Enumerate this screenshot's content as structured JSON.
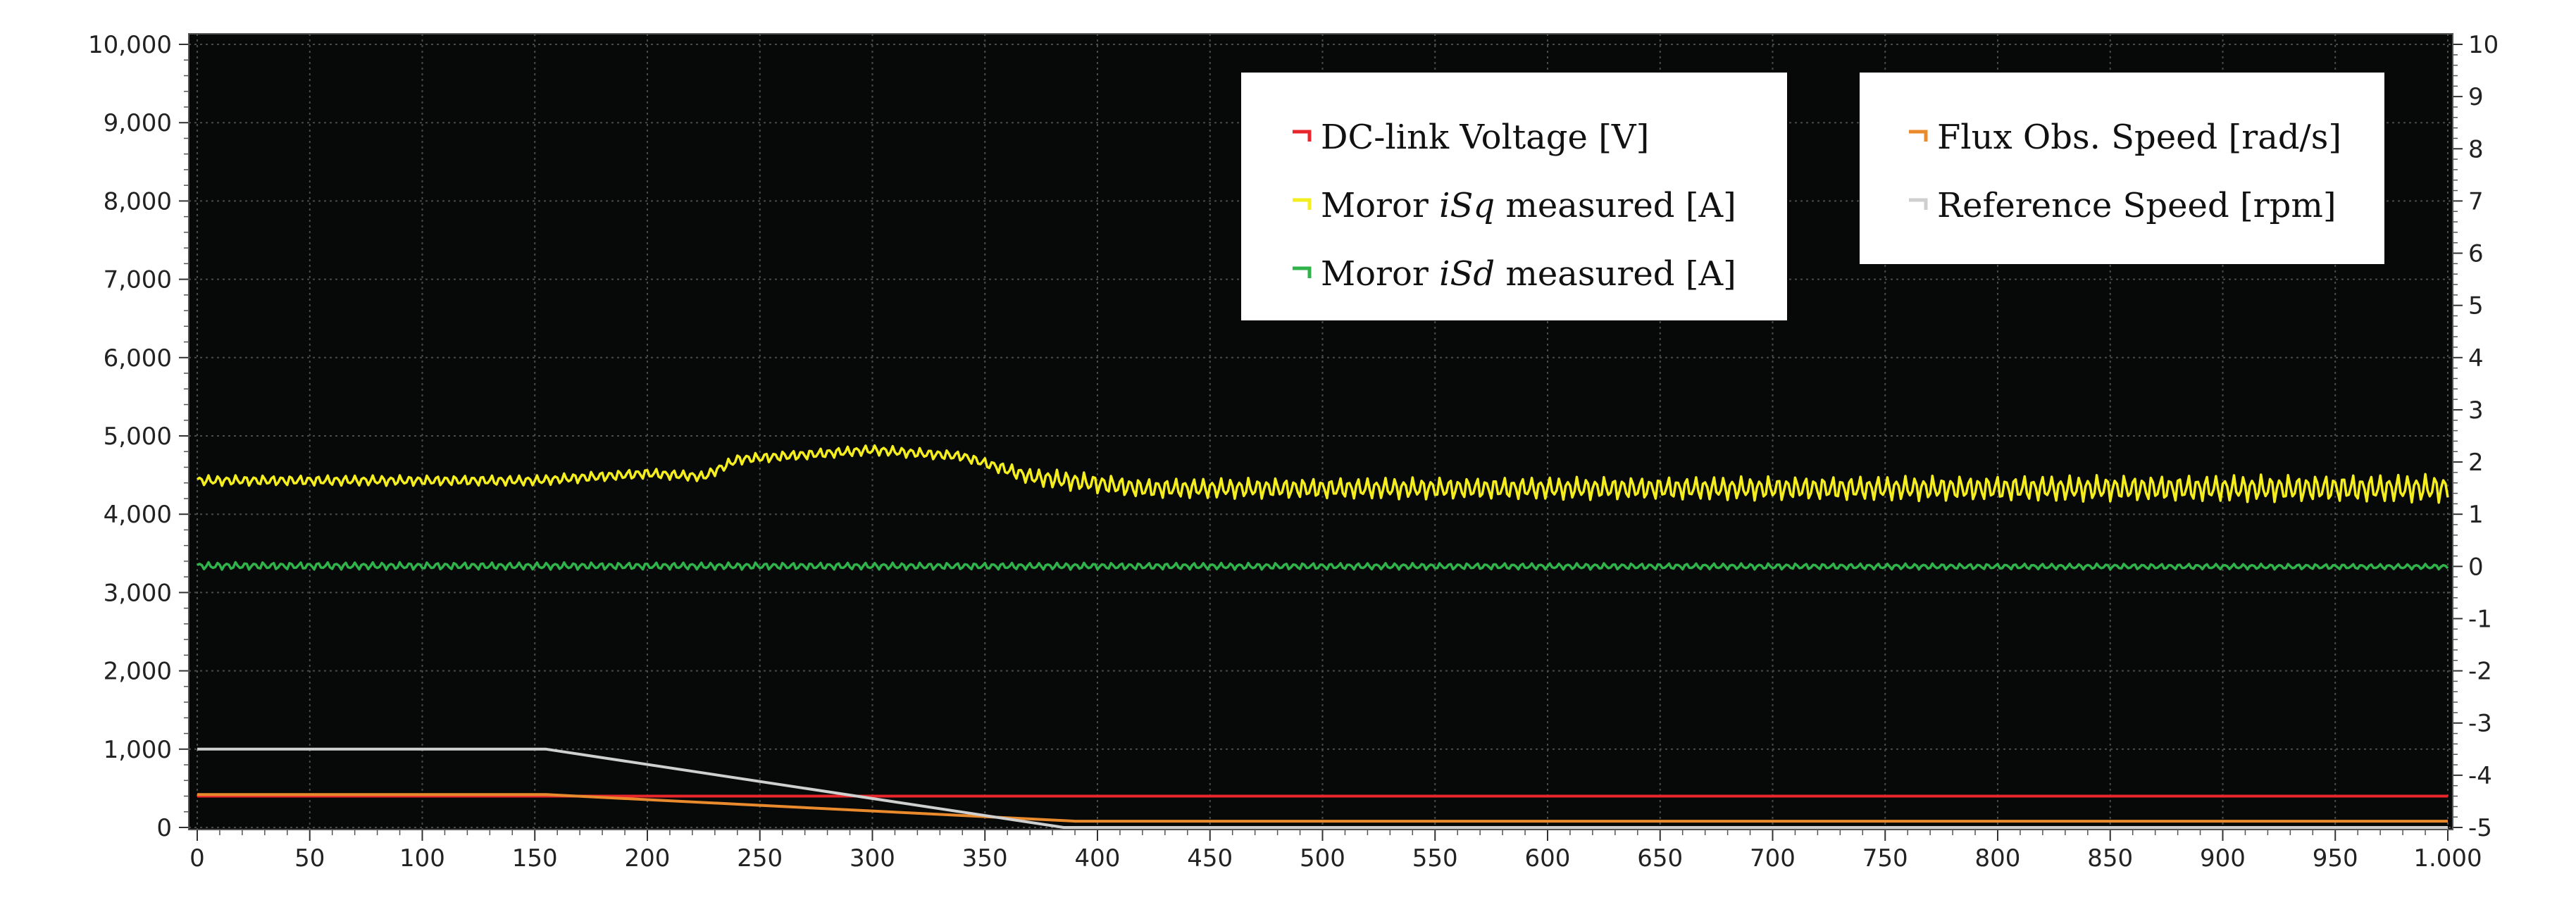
{
  "chart_data": {
    "type": "line",
    "x_axis": {
      "min": 0,
      "max": 1000,
      "ticks": [
        "0",
        "50",
        "100",
        "150",
        "200",
        "250",
        "300",
        "350",
        "400",
        "450",
        "500",
        "550",
        "600",
        "650",
        "700",
        "750",
        "800",
        "850",
        "900",
        "950",
        "1.000"
      ]
    },
    "y_left": {
      "min": 0,
      "max": 10000,
      "ticks": [
        "0",
        "1,000",
        "2,000",
        "3,000",
        "4,000",
        "5,000",
        "6,000",
        "7,000",
        "8,000",
        "9,000",
        "10,000"
      ]
    },
    "y_right": {
      "min": -5,
      "max": 10,
      "ticks": [
        "-5",
        "-4",
        "-3",
        "-2",
        "-1",
        "0",
        "1",
        "2",
        "3",
        "4",
        "5",
        "6",
        "7",
        "8",
        "9",
        "10"
      ]
    },
    "grid": true,
    "legend_left": [
      {
        "label_parts": [
          "DC-link Voltage [V]"
        ],
        "color": "#e8262b"
      },
      {
        "label_parts": [
          "Moror ",
          "iSq",
          " measured [A]"
        ],
        "color": "#f4ee1e"
      },
      {
        "label_parts": [
          "Moror ",
          "iSd",
          " measured [A]"
        ],
        "color": "#2fb34a"
      }
    ],
    "legend_right": [
      {
        "label_parts": [
          "Flux Obs. Speed [rad/s]"
        ],
        "color": "#e98a2c"
      },
      {
        "label_parts": [
          "Reference Speed [rpm]"
        ],
        "color": "#cfcfcf"
      }
    ],
    "series": [
      {
        "name": "DC-link Voltage [V]",
        "color": "#e8262b",
        "points": [
          [
            0,
            400
          ],
          [
            1000,
            400
          ]
        ]
      },
      {
        "name": "Moror iSq measured [A]",
        "color": "#f4ee1e",
        "envelope": [
          [
            0,
            4430
          ],
          [
            150,
            4430
          ],
          [
            200,
            4520
          ],
          [
            225,
            4480
          ],
          [
            240,
            4700
          ],
          [
            300,
            4820
          ],
          [
            340,
            4740
          ],
          [
            370,
            4480
          ],
          [
            420,
            4330
          ],
          [
            1000,
            4330
          ]
        ],
        "amplitude": [
          [
            0,
            70
          ],
          [
            350,
            70
          ],
          [
            380,
            130
          ],
          [
            1000,
            190
          ]
        ]
      },
      {
        "name": "Moror iSd measured [A]",
        "color": "#2fb34a",
        "envelope": [
          [
            0,
            3340
          ],
          [
            1000,
            3330
          ]
        ],
        "amplitude": [
          [
            0,
            50
          ],
          [
            400,
            45
          ],
          [
            1000,
            35
          ]
        ]
      },
      {
        "name": "Flux Obs. Speed [rad/s]",
        "color": "#e98a2c",
        "points": [
          [
            0,
            420
          ],
          [
            155,
            420
          ],
          [
            390,
            80
          ],
          [
            1000,
            80
          ]
        ]
      },
      {
        "name": "Reference Speed [rpm]",
        "color": "#cfcfcf",
        "points": [
          [
            0,
            1000
          ],
          [
            155,
            1000
          ],
          [
            385,
            0
          ],
          [
            1000,
            0
          ]
        ]
      }
    ]
  }
}
